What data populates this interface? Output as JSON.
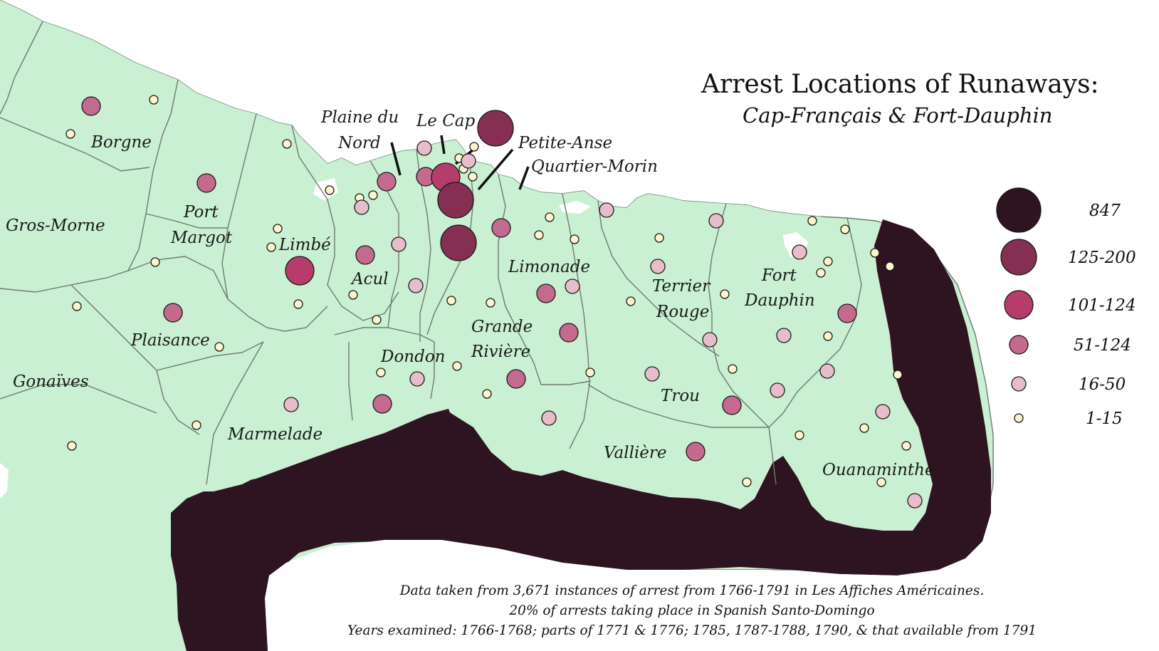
{
  "title": "Arrest Locations of Runaways:",
  "subtitle": "Cap-Français & Fort-Dauphin",
  "colors": {
    "land": "#c9f0d2",
    "border": "#6f7a70",
    "spanish": "#2e1320",
    "sea": "#ffffff",
    "tier_847": "#2e1320",
    "tier_125_200": "#852f52",
    "tier_101_124": "#b63d6b",
    "tier_51_124": "#c46a8e",
    "tier_16_50": "#e7bccb",
    "tier_1_15": "#fbf4cc"
  },
  "parishes": [
    "Borgne",
    "Port",
    "Margot",
    "Gros-Morne",
    "Limbé",
    "Plaisance",
    "Gonaïves",
    "Marmelade",
    "Acul",
    "Dondon",
    "Grande",
    "Rivière",
    "Limonade",
    "Terrier",
    "Rouge",
    "Fort",
    "Dauphin",
    "Trou",
    "Vallière",
    "Ouanaminthe"
  ],
  "callouts": [
    "Plaine du",
    "Nord",
    "Le Cap",
    "Petite-Anse",
    "Quartier-Morin"
  ],
  "legend": [
    {
      "label": "847",
      "tier": "tier_847"
    },
    {
      "label": "125-200",
      "tier": "tier_125_200"
    },
    {
      "label": "101-124",
      "tier": "tier_101_124"
    },
    {
      "label": "51-124",
      "tier": "tier_51_124"
    },
    {
      "label": "16-50",
      "tier": "tier_16_50"
    },
    {
      "label": "1-15",
      "tier": "tier_1_15"
    }
  ],
  "notes": [
    "Data taken from 3,671 instances of arrest from 1766-1791 in Les Affiches Américaines.",
    "20% of arrests taking place in Spanish Santo-Domingo",
    "Years examined: 1766-1768; parts of 1771 & 1776; 1785, 1787-1788, 1790, & that available from 1791"
  ]
}
